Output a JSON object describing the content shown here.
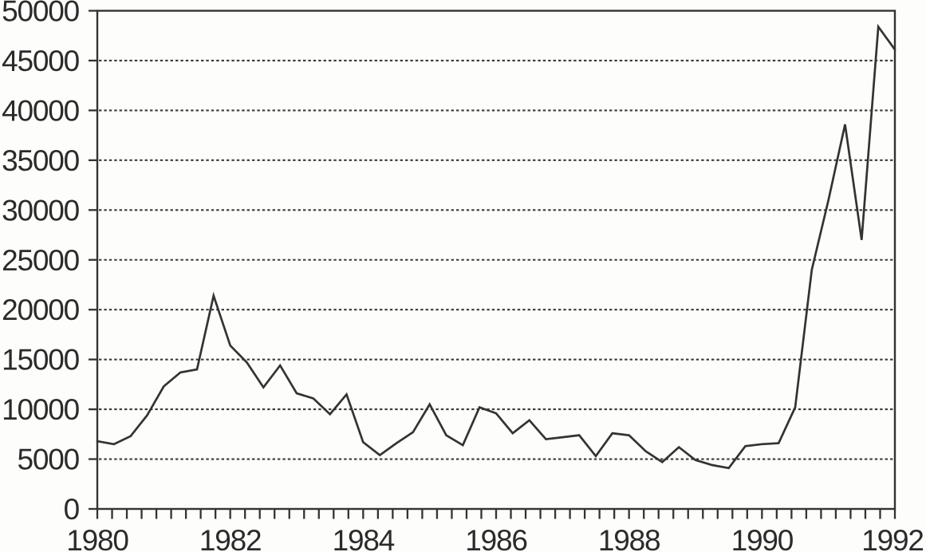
{
  "chart_data": {
    "type": "line",
    "title": "",
    "xlabel": "",
    "ylabel": "",
    "x": [
      1980.0,
      1980.25,
      1980.5,
      1980.75,
      1981.0,
      1981.25,
      1981.5,
      1981.75,
      1982.0,
      1982.25,
      1982.5,
      1982.75,
      1983.0,
      1983.25,
      1983.5,
      1983.75,
      1984.0,
      1984.25,
      1984.5,
      1984.75,
      1985.0,
      1985.25,
      1985.5,
      1985.75,
      1986.0,
      1986.25,
      1986.5,
      1986.75,
      1987.0,
      1987.25,
      1987.5,
      1987.75,
      1988.0,
      1988.25,
      1988.5,
      1988.75,
      1989.0,
      1989.25,
      1989.5,
      1989.75,
      1990.0,
      1990.25,
      1990.5,
      1990.75,
      1991.0,
      1991.25,
      1991.5,
      1991.75,
      1992.0
    ],
    "values": [
      6800,
      6500,
      7300,
      9400,
      12300,
      13700,
      14000,
      21400,
      16400,
      14700,
      12200,
      14400,
      11600,
      11100,
      9500,
      11500,
      6700,
      5400,
      6600,
      7700,
      10500,
      7400,
      6400,
      10200,
      9600,
      7600,
      8900,
      7000,
      7200,
      7400,
      5300,
      7600,
      7400,
      5800,
      4700,
      6200,
      4900,
      4400,
      4100,
      6300,
      6500,
      6600,
      10200,
      24000,
      31000,
      38600,
      27000,
      48400,
      46100
    ],
    "xlim": [
      1980,
      1992
    ],
    "ylim": [
      0,
      50000
    ],
    "ytick_step": 5000,
    "ytick_labels": [
      "0",
      "5000",
      "10000",
      "15000",
      "20000",
      "25000",
      "30000",
      "35000",
      "40000",
      "45000",
      "50000"
    ],
    "xtick_labels": [
      "1980",
      "1982",
      "1984",
      "1986",
      "1988",
      "1990",
      "1992"
    ],
    "xtick_years": [
      1980,
      1982,
      1984,
      1986,
      1988,
      1990,
      1992
    ],
    "minor_xtick_intervals": 54,
    "grid": "horizontal-dotted",
    "legend": "none",
    "frame": "full-box"
  },
  "style": {
    "line_color": "#333333",
    "grid_color": "#3c3c3c",
    "axis_color": "#333333",
    "text_color": "#2b2b2b",
    "background": "#fdfdfb"
  }
}
